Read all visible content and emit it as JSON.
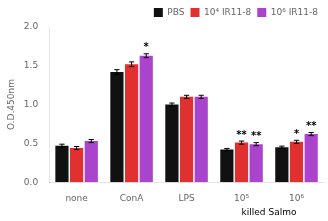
{
  "chart_data": {
    "type": "bar",
    "categories": [
      "none",
      "ConA",
      "LPS",
      "10⁵",
      "10⁶"
    ],
    "series": [
      {
        "name": "PBS",
        "color": "#111111",
        "values": [
          0.47,
          1.42,
          1.0,
          0.42,
          0.45
        ],
        "errors": [
          0.02,
          0.03,
          0.02,
          0.015,
          0.015
        ]
      },
      {
        "name": "10⁴ IR11-8",
        "color": "#e03030",
        "values": [
          0.44,
          1.52,
          1.1,
          0.51,
          0.52
        ],
        "errors": [
          0.02,
          0.03,
          0.02,
          0.02,
          0.02
        ]
      },
      {
        "name": "10⁶ IR11-8",
        "color": "#aa44cc",
        "values": [
          0.53,
          1.63,
          1.1,
          0.49,
          0.62
        ],
        "errors": [
          0.02,
          0.025,
          0.02,
          0.02,
          0.02
        ]
      }
    ],
    "ylabel": "O.D.450nm",
    "ylim": [
      0,
      2.0
    ],
    "yticks": [
      {
        "value": 0,
        "label": "0.0"
      },
      0.5,
      {
        "value": 1,
        "label": "1.0"
      },
      1.5,
      {
        "value": 2,
        "label": "2.0"
      }
    ],
    "grid": false,
    "legend": "upper right",
    "annotations": [
      {
        "text": "*",
        "category": "ConA",
        "series": "10⁶ IR11-8"
      },
      {
        "text": "**",
        "category": "10⁵",
        "series": "10⁴ IR11-8"
      },
      {
        "text": "**",
        "category": "10⁵",
        "series": "10⁶ IR11-8"
      },
      {
        "text": "*",
        "category": "10⁶",
        "series": "10⁴ IR11-8"
      },
      {
        "text": "**",
        "category": "10⁶",
        "series": "10⁶ IR11-8"
      },
      {
        "text": "killed Salmo",
        "categories": [
          "10⁵",
          "10⁶"
        ]
      }
    ]
  }
}
